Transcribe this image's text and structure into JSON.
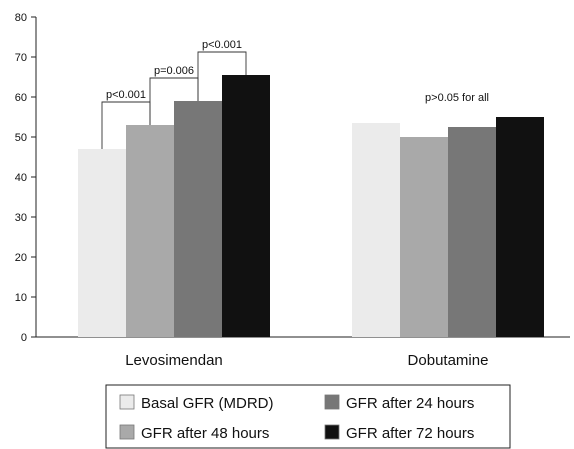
{
  "chart_data": {
    "type": "bar",
    "categories": [
      "Levosimendan",
      "Dobutamine"
    ],
    "series": [
      {
        "name": "Basal GFR (MDRD)",
        "color": "#ebebeb",
        "values": [
          47.0,
          53.5
        ]
      },
      {
        "name": "GFR after 48 hours",
        "color": "#a9a9a9",
        "values": [
          53.0,
          50.0
        ]
      },
      {
        "name": "GFR after 24 hours",
        "color": "#777777",
        "values": [
          59.0,
          52.5
        ]
      },
      {
        "name": "GFR after 72 hours",
        "color": "#111111",
        "values": [
          65.5,
          55.0
        ]
      }
    ],
    "yticks": [
      0,
      10,
      20,
      30,
      40,
      50,
      60,
      70,
      80
    ],
    "ylim": [
      0,
      80
    ],
    "title": "",
    "xlabel": "",
    "ylabel": "",
    "grid": false,
    "legend_position": "bottom",
    "legend_order": [
      0,
      2,
      1,
      3
    ],
    "annotations": {
      "levosimendan": [
        {
          "text": "p<0.001",
          "from_series": 0,
          "to_series": 1
        },
        {
          "text": "p=0.006",
          "from_series": 1,
          "to_series": 2
        },
        {
          "text": "p<0.001",
          "from_series": 2,
          "to_series": 3
        }
      ],
      "dobutamine": {
        "text": "p>0.05 for all"
      }
    }
  }
}
